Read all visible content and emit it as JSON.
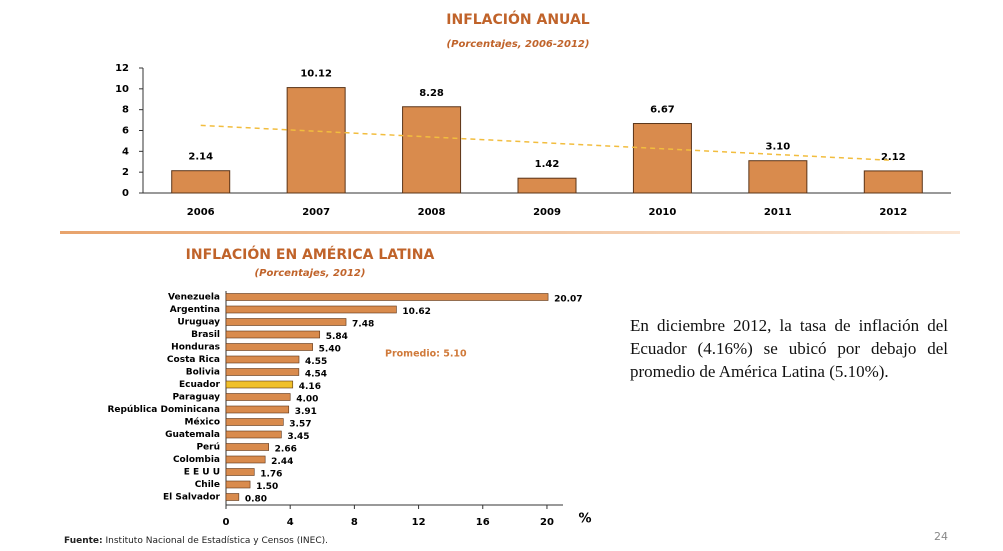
{
  "chart_data": [
    {
      "type": "bar",
      "title": "INFLACIÓN ANUAL",
      "subtitle": "(Porcentajes, 2006-2012)",
      "categories": [
        "2006",
        "2007",
        "2008",
        "2009",
        "2010",
        "2011",
        "2012"
      ],
      "values": [
        2.14,
        10.12,
        8.28,
        1.42,
        6.67,
        3.1,
        2.12
      ],
      "value_labels": [
        "2.14",
        "10.12",
        "8.28",
        "1.42",
        "6.67",
        "3.10",
        "2.12"
      ],
      "color": "#d98b4d",
      "edge_color": "#5a3418",
      "ylim": [
        0,
        12
      ],
      "yticks": [
        0,
        2,
        4,
        6,
        8,
        10,
        12
      ],
      "trendline": {
        "start": 6.49,
        "end": 3.13,
        "color": "#f2bd3e",
        "dashed": true
      }
    },
    {
      "type": "bar",
      "orientation": "horizontal",
      "title": "INFLACIÓN EN AMÉRICA LATINA",
      "subtitle": "(Porcentajes, 2012)",
      "categories": [
        "Venezuela",
        "Argentina",
        "Uruguay",
        "Brasil",
        "Honduras",
        "Costa Rica",
        "Bolivia",
        "Ecuador",
        "Paraguay",
        "República Dominicana",
        "México",
        "Guatemala",
        "Perú",
        "Colombia",
        "E E U U",
        "Chile",
        "El Salvador"
      ],
      "values": [
        20.07,
        10.62,
        7.48,
        5.84,
        5.4,
        4.55,
        4.54,
        4.16,
        4.0,
        3.91,
        3.57,
        3.45,
        2.66,
        2.44,
        1.76,
        1.5,
        0.8
      ],
      "value_labels": [
        "20.07",
        "10.62",
        "7.48",
        "5.84",
        "5.40",
        "4.55",
        "4.54",
        "4.16",
        "4.00",
        "3.91",
        "3.57",
        "3.45",
        "2.66",
        "2.44",
        "1.76",
        "1.50",
        "0.80"
      ],
      "color": "#d98b4d",
      "edge_color": "#5a3418",
      "highlight": "Ecuador",
      "highlight_color": "#f0c02a",
      "xlim": [
        0,
        21
      ],
      "xticks": [
        0,
        4,
        8,
        12,
        16,
        20
      ],
      "xlabel": "%",
      "annotation": "Promedio: 5.10"
    }
  ],
  "text": "En diciembre 2012, la tasa de inflación del Ecuador (4.16%) se ubicó por debajo del promedio de América Latina (5.10%).",
  "source": {
    "label": "Fuente:",
    "text": "Instituto Nacional de Estadística y Censos (INEC)."
  },
  "page_number": "24"
}
